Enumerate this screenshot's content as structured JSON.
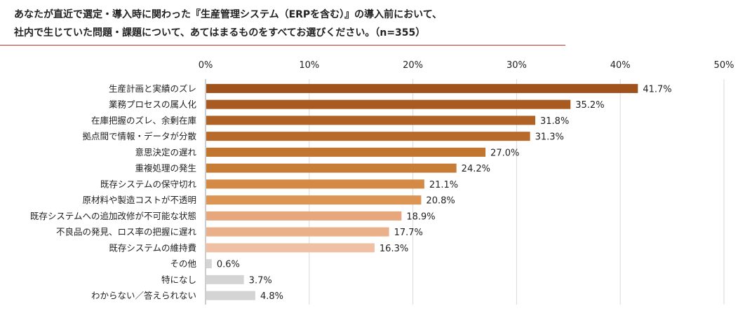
{
  "chart_data": {
    "type": "bar",
    "orientation": "horizontal",
    "title_line1": "あなたが直近で選定・導入時に関わった『生産管理システム（ERPを含む）』の導入前において、",
    "title_line2": "社内で生じていた問題・課題について、あてはまるものをすべてお選びください。（n=355）",
    "xlim": [
      0,
      50
    ],
    "ticks": [
      {
        "value": 0,
        "label": "0%"
      },
      {
        "value": 10,
        "label": "10%"
      },
      {
        "value": 20,
        "label": "20%"
      },
      {
        "value": 30,
        "label": "30%"
      },
      {
        "value": 40,
        "label": "40%"
      },
      {
        "value": 50,
        "label": "50%"
      }
    ],
    "grid": true,
    "bars": [
      {
        "category": "生産計画と実績のズレ",
        "value": 41.7,
        "label": "41.7%",
        "color": "#a0521d"
      },
      {
        "category": "業務プロセスの属人化",
        "value": 35.2,
        "label": "35.2%",
        "color": "#a85a20"
      },
      {
        "category": "在庫把握のズレ、余剰在庫",
        "value": 31.8,
        "label": "31.8%",
        "color": "#b06225"
      },
      {
        "category": "拠点間で情報・データが分散",
        "value": 31.3,
        "label": "31.3%",
        "color": "#b86a2a"
      },
      {
        "category": "意思決定の遅れ",
        "value": 27.0,
        "label": "27.0%",
        "color": "#c2752f"
      },
      {
        "category": "重複処理の発生",
        "value": 24.2,
        "label": "24.2%",
        "color": "#c87d36"
      },
      {
        "category": "既存システムの保守切れ",
        "value": 21.1,
        "label": "21.1%",
        "color": "#d48a45"
      },
      {
        "category": "原材料や製造コストが不透明",
        "value": 20.8,
        "label": "20.8%",
        "color": "#dc9555"
      },
      {
        "category": "既存システムへの追加改修が不可能な状態",
        "value": 18.9,
        "label": "18.9%",
        "color": "#e6a77c"
      },
      {
        "category": "不良品の発見、ロス率の把握に遅れ",
        "value": 17.7,
        "label": "17.7%",
        "color": "#eab08a"
      },
      {
        "category": "既存システムの維持費",
        "value": 16.3,
        "label": "16.3%",
        "color": "#f0c0a4"
      },
      {
        "category": "その他",
        "value": 0.6,
        "label": "0.6%",
        "color": "#d4d4d4"
      },
      {
        "category": "特になし",
        "value": 3.7,
        "label": "3.7%",
        "color": "#d4d4d4"
      },
      {
        "category": "わからない／答えられない",
        "value": 4.8,
        "label": "4.8%",
        "color": "#d4d4d4"
      }
    ]
  }
}
